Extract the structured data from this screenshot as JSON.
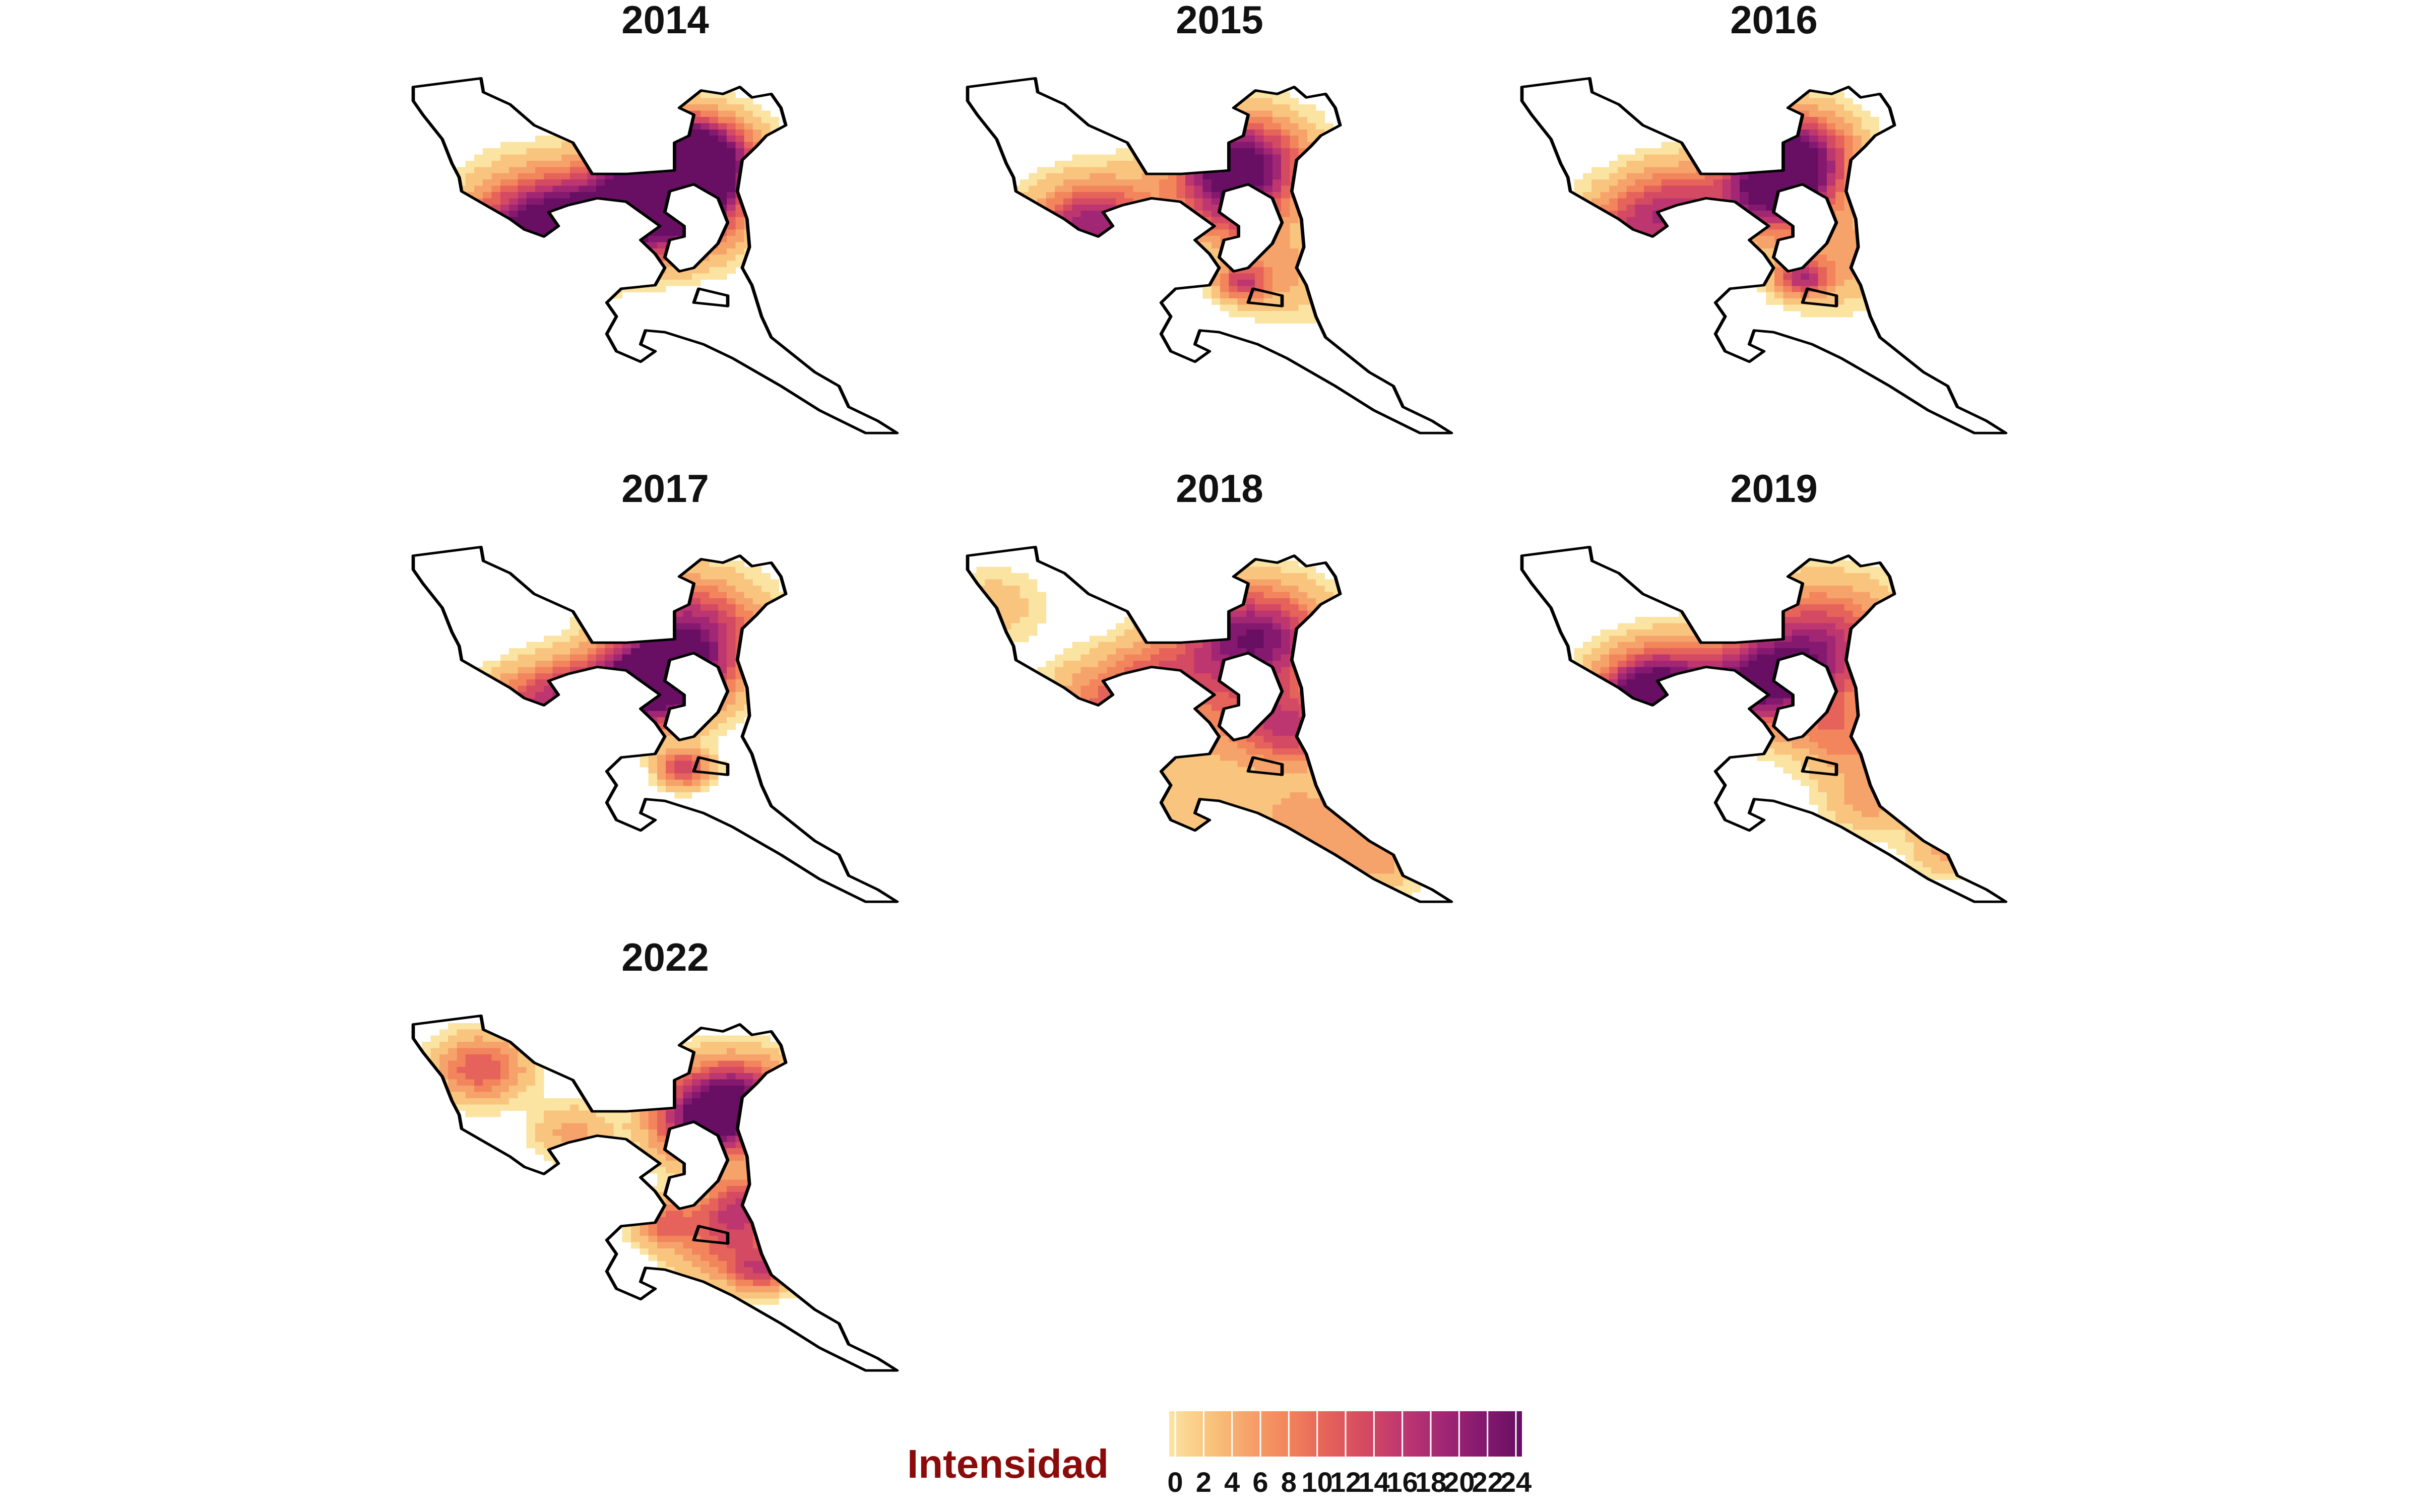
{
  "panels": [
    {
      "title": "2014",
      "hotspots": [
        [
          0.58,
          0.25,
          24,
          0.9
        ],
        [
          0.54,
          0.24,
          20,
          0.9
        ],
        [
          0.47,
          0.37,
          16,
          1.0
        ],
        [
          0.55,
          0.38,
          16,
          1.0
        ],
        [
          0.27,
          0.4,
          14,
          1.1
        ],
        [
          0.23,
          0.46,
          12,
          0.9
        ],
        [
          0.36,
          0.43,
          10,
          0.9
        ]
      ]
    },
    {
      "title": "2015",
      "hotspots": [
        [
          0.57,
          0.24,
          16,
          1.0
        ],
        [
          0.54,
          0.28,
          12,
          0.9
        ],
        [
          0.28,
          0.4,
          12,
          0.9
        ],
        [
          0.22,
          0.46,
          10,
          0.9
        ],
        [
          0.55,
          0.4,
          8,
          0.8
        ],
        [
          0.66,
          0.55,
          5,
          1.0
        ],
        [
          0.57,
          0.58,
          12,
          0.4
        ]
      ]
    },
    {
      "title": "2016",
      "hotspots": [
        [
          0.56,
          0.22,
          20,
          0.9
        ],
        [
          0.54,
          0.3,
          16,
          0.8
        ],
        [
          0.32,
          0.37,
          12,
          0.9
        ],
        [
          0.23,
          0.44,
          10,
          0.9
        ],
        [
          0.5,
          0.36,
          10,
          0.8
        ],
        [
          0.65,
          0.5,
          6,
          1.1
        ],
        [
          0.58,
          0.57,
          14,
          0.4
        ]
      ]
    },
    {
      "title": "2017",
      "hotspots": [
        [
          0.57,
          0.25,
          18,
          1.1
        ],
        [
          0.52,
          0.38,
          20,
          0.9
        ],
        [
          0.45,
          0.42,
          16,
          0.8
        ],
        [
          0.32,
          0.42,
          10,
          0.8
        ],
        [
          0.23,
          0.47,
          10,
          0.8
        ],
        [
          0.56,
          0.63,
          14,
          0.4
        ]
      ]
    },
    {
      "title": "2018",
      "hotspots": [
        [
          0.59,
          0.27,
          22,
          1.1
        ],
        [
          0.68,
          0.52,
          12,
          0.8
        ],
        [
          0.4,
          0.39,
          10,
          0.9
        ],
        [
          0.28,
          0.45,
          8,
          0.9
        ],
        [
          0.58,
          0.49,
          6,
          1.0
        ],
        [
          0.7,
          0.77,
          6,
          0.9
        ],
        [
          0.84,
          0.88,
          6,
          0.8
        ],
        [
          0.45,
          0.7,
          4,
          1.1
        ],
        [
          0.05,
          0.18,
          4,
          0.8
        ]
      ]
    },
    {
      "title": "2019",
      "hotspots": [
        [
          0.62,
          0.27,
          14,
          1.2
        ],
        [
          0.53,
          0.38,
          16,
          1.0
        ],
        [
          0.29,
          0.39,
          16,
          0.9
        ],
        [
          0.25,
          0.45,
          18,
          0.8
        ],
        [
          0.45,
          0.42,
          10,
          0.8
        ],
        [
          0.67,
          0.55,
          8,
          0.8
        ],
        [
          0.72,
          0.72,
          6,
          0.7
        ],
        [
          0.88,
          0.85,
          6,
          0.6
        ]
      ]
    },
    {
      "title": "2022",
      "hotspots": [
        [
          0.66,
          0.25,
          22,
          0.9
        ],
        [
          0.6,
          0.32,
          16,
          0.8
        ],
        [
          0.14,
          0.16,
          12,
          0.7
        ],
        [
          0.68,
          0.55,
          14,
          0.7
        ],
        [
          0.64,
          0.66,
          8,
          0.8
        ],
        [
          0.72,
          0.72,
          12,
          0.5
        ],
        [
          0.52,
          0.59,
          10,
          0.5
        ],
        [
          0.33,
          0.34,
          6,
          0.6
        ]
      ]
    }
  ],
  "legend": {
    "title": "Intensidad",
    "ticks": [
      "0",
      "2",
      "4",
      "6",
      "8",
      "10",
      "12",
      "14",
      "16",
      "18",
      "20",
      "22",
      "24"
    ],
    "min": 0,
    "max": 24
  },
  "palette": [
    "#fbe3a2",
    "#f9c57e",
    "#f6a36b",
    "#f2855c",
    "#e5635a",
    "#d44a62",
    "#bd3670",
    "#a12774",
    "#84196f",
    "#680f64"
  ],
  "outline_color": "#000000",
  "legend_title_color": "#8b0a0a"
}
